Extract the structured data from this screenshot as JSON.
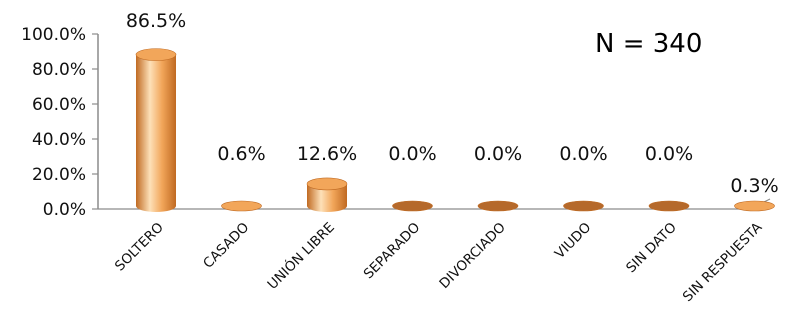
{
  "annotation": "N = 340",
  "chart_data": {
    "type": "bar",
    "style": "3d-cylinder",
    "title": "",
    "xlabel": "",
    "ylabel": "",
    "categories": [
      "SOLTERO",
      "CASADO",
      "UNIÓN LIBRE",
      "SEPARADO",
      "DIVORCIADO",
      "VIUDO",
      "SIN DATO",
      "SIN RESPUESTA"
    ],
    "values": [
      86.5,
      0.6,
      12.6,
      0.0,
      0.0,
      0.0,
      0.0,
      0.3
    ],
    "data_labels": [
      "86.5%",
      "0.6%",
      "12.6%",
      "0.0%",
      "0.0%",
      "0.0%",
      "0.0%",
      "0.3%"
    ],
    "y_ticks": [
      "0.0%",
      "20.0%",
      "40.0%",
      "60.0%",
      "80.0%",
      "100.0%"
    ],
    "ylim": [
      0,
      100
    ],
    "grid": false,
    "legend": "none",
    "colors": {
      "bar_light": "#fde0b8",
      "bar_mid": "#f2a65a",
      "bar_dark": "#c06a22",
      "zero_cap": "#b5692b",
      "axis": "#8c8c8c"
    }
  }
}
